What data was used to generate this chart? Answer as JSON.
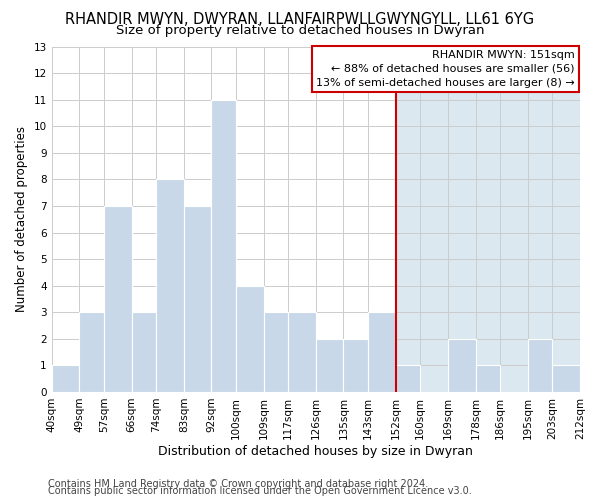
{
  "title": "RHANDIR MWYN, DWYRAN, LLANFAIRPWLLGWYNGYLL, LL61 6YG",
  "subtitle": "Size of property relative to detached houses in Dwyran",
  "xlabel": "Distribution of detached houses by size in Dwyran",
  "ylabel": "Number of detached properties",
  "bar_edges": [
    40,
    49,
    57,
    66,
    74,
    83,
    92,
    100,
    109,
    117,
    126,
    135,
    143,
    152,
    160,
    169,
    178,
    186,
    195,
    203,
    212
  ],
  "bar_heights": [
    1,
    3,
    7,
    3,
    8,
    7,
    11,
    4,
    3,
    3,
    2,
    2,
    3,
    1,
    0,
    2,
    1,
    0,
    2,
    1,
    0
  ],
  "bar_color": "#c8d8e8",
  "bar_edgecolor": "#ffffff",
  "bar_linewidth": 0.8,
  "vline_x": 152,
  "vline_color": "#cc0000",
  "ylim": [
    0,
    13
  ],
  "yticks": [
    0,
    1,
    2,
    3,
    4,
    5,
    6,
    7,
    8,
    9,
    10,
    11,
    12,
    13
  ],
  "tick_labels": [
    "40sqm",
    "49sqm",
    "57sqm",
    "66sqm",
    "74sqm",
    "83sqm",
    "92sqm",
    "100sqm",
    "109sqm",
    "117sqm",
    "126sqm",
    "135sqm",
    "143sqm",
    "152sqm",
    "160sqm",
    "169sqm",
    "178sqm",
    "186sqm",
    "195sqm",
    "203sqm",
    "212sqm"
  ],
  "legend_title": "RHANDIR MWYN: 151sqm",
  "legend_line1": "← 88% of detached houses are smaller (56)",
  "legend_line2": "13% of semi-detached houses are larger (8) →",
  "legend_box_facecolor": "#ffffff",
  "legend_box_edgecolor": "#cc0000",
  "highlight_color": "#dce8f0",
  "grid_color": "#cccccc",
  "background_color": "#ffffff",
  "footer1": "Contains HM Land Registry data © Crown copyright and database right 2024.",
  "footer2": "Contains public sector information licensed under the Open Government Licence v3.0.",
  "title_fontsize": 10.5,
  "subtitle_fontsize": 9.5,
  "xlabel_fontsize": 9,
  "ylabel_fontsize": 8.5,
  "tick_fontsize": 7.5,
  "legend_fontsize": 8,
  "footer_fontsize": 7
}
